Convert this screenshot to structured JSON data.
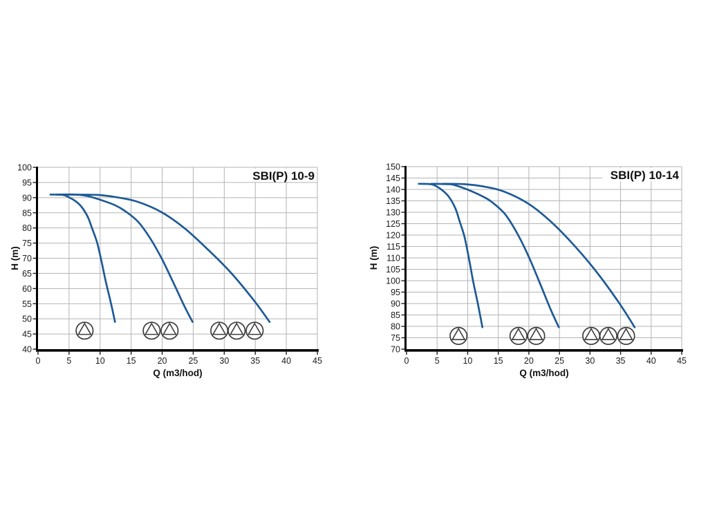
{
  "colors": {
    "curve": "#1d5a96",
    "grid": "#b3b3b3",
    "axis": "#000000",
    "tick": "#1a1a1a",
    "pump_icon": "#3c3c3c",
    "background": "#ffffff"
  },
  "chart_data": [
    {
      "type": "line",
      "title": "SBI(P) 10-9",
      "xlabel": "Q (m3/hod)",
      "ylabel": "H (m)",
      "xlim": [
        0,
        45
      ],
      "ylim": [
        40,
        100
      ],
      "xticks": [
        0,
        5,
        10,
        15,
        20,
        25,
        30,
        35,
        40,
        45
      ],
      "yticks": [
        40,
        45,
        50,
        55,
        60,
        65,
        70,
        75,
        80,
        85,
        90,
        95,
        100
      ],
      "grid": true,
      "legend": false,
      "series": [
        {
          "name": "1 pump",
          "points": [
            [
              2,
              91
            ],
            [
              4,
              90.9
            ],
            [
              5,
              90.1
            ],
            [
              6,
              88.9
            ],
            [
              7,
              87
            ],
            [
              8,
              83.7
            ],
            [
              8.7,
              79.9
            ],
            [
              9.5,
              75.3
            ],
            [
              10.2,
              69.2
            ],
            [
              10.9,
              62.4
            ],
            [
              11.7,
              55.6
            ],
            [
              12.4,
              49
            ]
          ]
        },
        {
          "name": "2 pumps",
          "points": [
            [
              3,
              91
            ],
            [
              6,
              91
            ],
            [
              8,
              90.5
            ],
            [
              10,
              89.3
            ],
            [
              12.4,
              87.5
            ],
            [
              14,
              85.6
            ],
            [
              16.1,
              82.1
            ],
            [
              18,
              76.8
            ],
            [
              19.9,
              70
            ],
            [
              21.7,
              62.4
            ],
            [
              23.6,
              54.1
            ],
            [
              24.9,
              49
            ]
          ]
        },
        {
          "name": "3 pumps",
          "points": [
            [
              4,
              91
            ],
            [
              9.5,
              90.9
            ],
            [
              13,
              90
            ],
            [
              16.1,
              88.6
            ],
            [
              19.9,
              85.2
            ],
            [
              23.6,
              79.9
            ],
            [
              27.3,
              73
            ],
            [
              31,
              65.4
            ],
            [
              34.7,
              56.3
            ],
            [
              37.3,
              49
            ]
          ]
        }
      ],
      "pump_icons": [
        {
          "pumps": 1,
          "q": [
            7.5
          ],
          "h": 46.1
        },
        {
          "pumps": 2,
          "q": [
            18.3,
            21.2
          ],
          "h": 46.1
        },
        {
          "pumps": 3,
          "q": [
            29.2,
            32.0,
            34.9
          ],
          "h": 46.1
        }
      ]
    },
    {
      "type": "line",
      "title": "SBI(P) 10-14",
      "xlabel": "Q (m3/hod)",
      "ylabel": "H (m)",
      "xlim": [
        0,
        45
      ],
      "ylim": [
        70,
        150
      ],
      "xticks": [
        0,
        5,
        10,
        15,
        20,
        25,
        30,
        35,
        40,
        45
      ],
      "yticks": [
        70,
        75,
        80,
        85,
        90,
        95,
        100,
        105,
        110,
        115,
        120,
        125,
        130,
        135,
        140,
        145,
        150
      ],
      "grid": true,
      "legend": false,
      "series": [
        {
          "name": "1 pump",
          "points": [
            [
              2,
              142.5
            ],
            [
              4,
              142.3
            ],
            [
              5,
              141.2
            ],
            [
              6,
              139.3
            ],
            [
              7,
              136.5
            ],
            [
              8,
              131.6
            ],
            [
              8.7,
              125.9
            ],
            [
              9.5,
              119
            ],
            [
              10.2,
              109.8
            ],
            [
              10.9,
              99.6
            ],
            [
              11.7,
              89.4
            ],
            [
              12.4,
              79.6
            ]
          ]
        },
        {
          "name": "2 pumps",
          "points": [
            [
              4,
              142.5
            ],
            [
              7,
              142.3
            ],
            [
              8,
              141.8
            ],
            [
              10,
              139.9
            ],
            [
              12.4,
              137
            ],
            [
              14,
              134.4
            ],
            [
              16.1,
              129.2
            ],
            [
              18,
              121.2
            ],
            [
              19.9,
              111
            ],
            [
              21.7,
              99.6
            ],
            [
              23.6,
              87.2
            ],
            [
              24.9,
              79.6
            ]
          ]
        },
        {
          "name": "3 pumps",
          "points": [
            [
              6,
              142.5
            ],
            [
              9.5,
              142.3
            ],
            [
              13,
              141.1
            ],
            [
              16.1,
              138.9
            ],
            [
              19.9,
              133.8
            ],
            [
              23.6,
              125.9
            ],
            [
              27.3,
              115.8
            ],
            [
              31,
              104.1
            ],
            [
              34.7,
              90.5
            ],
            [
              37.3,
              79.6
            ]
          ]
        }
      ],
      "pump_icons": [
        {
          "pumps": 1,
          "q": [
            8.5
          ],
          "h": 75.8
        },
        {
          "pumps": 2,
          "q": [
            18.3,
            21.2
          ],
          "h": 75.8
        },
        {
          "pumps": 3,
          "q": [
            30.2,
            33.0,
            35.9
          ],
          "h": 75.8
        }
      ]
    }
  ]
}
